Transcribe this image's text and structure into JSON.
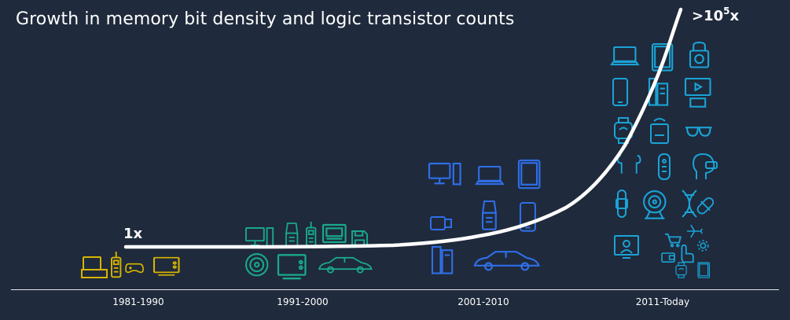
{
  "title": "Growth in memory bit density and logic transistor counts",
  "start_label": "1x",
  "end_label": {
    "base": ">10",
    "exponent": "5",
    "suffix": "x"
  },
  "eras": [
    {
      "label": "1981-1990"
    },
    {
      "label": "1991-2000"
    },
    {
      "label": "2001-2010"
    },
    {
      "label": "2011-Today"
    }
  ],
  "colors": {
    "background": "#1f2a3c",
    "curve": "#ffffff",
    "era1": "#d8b400",
    "era2": "#1aa88a",
    "era3": "#2f6ee6",
    "era4": "#1aa3d6"
  },
  "icons": {
    "era1": [
      "desktop-computer-icon",
      "mobile-phone-icon",
      "game-controller-icon",
      "television-icon"
    ],
    "era2": [
      "computer-monitor-icon",
      "flip-phone-icon",
      "brick-phone-icon",
      "vcr-icon",
      "floppy-disk-icon",
      "compact-disc-icon",
      "television-icon",
      "car-icon"
    ],
    "era3": [
      "desktop-computer-icon",
      "laptop-icon",
      "tablet-icon",
      "usb-drive-icon",
      "flip-phone-icon",
      "smartphone-icon",
      "server-icon",
      "car-icon"
    ],
    "era4": [
      "laptop-icon",
      "tablet-icon",
      "smart-lock-icon",
      "smartphone-icon",
      "server-rack-icon",
      "smart-tv-icon",
      "smartwatch-icon",
      "smart-thermostat-icon",
      "smart-glasses-icon",
      "earbuds-icon",
      "smart-speaker-icon",
      "ai-head-icon",
      "fitness-band-icon",
      "webcam-icon",
      "dna-icon",
      "pill-icon",
      "medical-monitor-icon",
      "shopping-cart-icon",
      "airplane-icon",
      "gear-icon",
      "touch-hand-icon",
      "wallet-icon",
      "watch-icon",
      "tablet-small-icon"
    ]
  }
}
